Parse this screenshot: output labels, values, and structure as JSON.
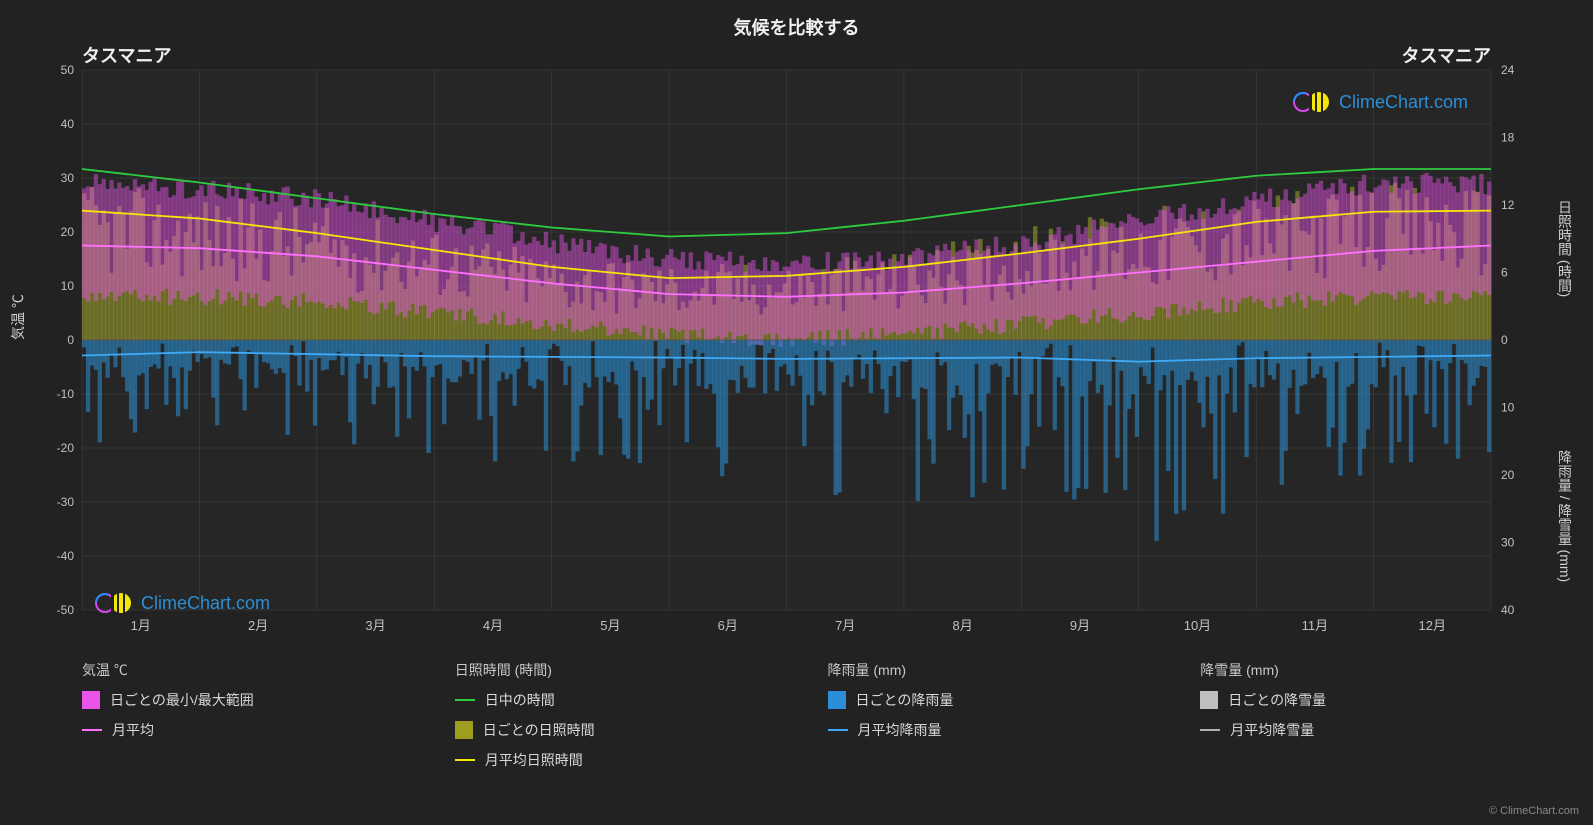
{
  "title": "気候を比較する",
  "location_left": "タスマニア",
  "location_right": "タスマニア",
  "watermark": "ClimeChart.com",
  "copyright": "© ClimeChart.com",
  "axes": {
    "left_label": "気温 ℃",
    "right_top_label": "日照時間 (時間)",
    "right_bottom_label": "降雨量 / 降雪量 (mm)",
    "left_ticks": [
      -50,
      -40,
      -30,
      -20,
      -10,
      0,
      10,
      20,
      30,
      40,
      50
    ],
    "right_top_ticks": [
      0,
      6,
      12,
      18,
      24
    ],
    "right_bottom_ticks": [
      0,
      10,
      20,
      30,
      40
    ],
    "months": [
      "1月",
      "2月",
      "3月",
      "4月",
      "5月",
      "6月",
      "7月",
      "8月",
      "9月",
      "10月",
      "11月",
      "12月"
    ]
  },
  "chart": {
    "background": "#222222",
    "grid_color": "#444444",
    "plot_bg": "#262626",
    "left_ylim": [
      -50,
      50
    ],
    "right_top_ylim": [
      0,
      24
    ],
    "right_bottom_ylim": [
      0,
      40
    ],
    "temp_range_color": "#e855e8",
    "temp_range_opacity": 0.45,
    "sunshine_range_color": "#c2c22e",
    "sunshine_range_opacity": 0.45,
    "rain_bar_color": "#2a8fd6",
    "rain_bar_opacity": 0.55,
    "daylength_line_color": "#2ecc40",
    "avg_sun_line_color": "#f5e60a",
    "avg_temp_line_color": "#ff70ff",
    "avg_rain_line_color": "#3fa9f5",
    "avg_snow_line_color": "#b0b0b0",
    "line_width": 1.8,
    "daylength_hours": [
      15.2,
      14.0,
      12.6,
      11.2,
      10.0,
      9.2,
      9.5,
      10.6,
      12.0,
      13.4,
      14.6,
      15.2
    ],
    "avg_sunshine_hours": [
      11.5,
      10.8,
      9.5,
      8.0,
      6.5,
      5.5,
      5.7,
      6.5,
      7.7,
      9.0,
      10.5,
      11.4
    ],
    "avg_temp_c": [
      17.5,
      17.0,
      15.5,
      13.0,
      10.5,
      8.5,
      8.0,
      8.8,
      10.5,
      12.5,
      14.5,
      16.5
    ],
    "avg_rain_mm": [
      2.3,
      1.8,
      2.1,
      2.4,
      2.5,
      2.6,
      2.8,
      2.7,
      2.6,
      3.2,
      2.7,
      2.5
    ],
    "avg_snow_mm": [
      0,
      0,
      0,
      0,
      0,
      0,
      0,
      0,
      0,
      0,
      0,
      0
    ],
    "daily_temp_min": [
      8,
      8,
      7,
      5,
      3,
      1,
      0,
      1,
      3,
      5,
      7,
      8
    ],
    "daily_temp_max": [
      29,
      28,
      26,
      22,
      18,
      15,
      14,
      15,
      18,
      22,
      26,
      29
    ],
    "daily_sun_min": [
      2,
      2,
      1,
      1,
      0,
      0,
      0,
      0,
      1,
      1,
      2,
      2
    ],
    "daily_sun_max": [
      14,
      13,
      12,
      10,
      8,
      7,
      7,
      8,
      10,
      12,
      13,
      14
    ],
    "daily_rain_max": [
      12,
      9,
      11,
      13,
      14,
      15,
      16,
      18,
      16,
      22,
      17,
      14
    ]
  },
  "legend": {
    "groups": [
      {
        "title": "気温 ℃",
        "items": [
          {
            "type": "box",
            "color": "#e855e8",
            "label": "日ごとの最小/最大範囲"
          },
          {
            "type": "line",
            "color": "#ff70ff",
            "label": "月平均"
          }
        ]
      },
      {
        "title": "日照時間 (時間)",
        "items": [
          {
            "type": "line",
            "color": "#2ecc40",
            "label": "日中の時間"
          },
          {
            "type": "box",
            "color": "#9e9e1e",
            "label": "日ごとの日照時間"
          },
          {
            "type": "line",
            "color": "#f5e60a",
            "label": "月平均日照時間"
          }
        ]
      },
      {
        "title": "降雨量 (mm)",
        "items": [
          {
            "type": "box",
            "color": "#2a8fd6",
            "label": "日ごとの降雨量"
          },
          {
            "type": "line",
            "color": "#3fa9f5",
            "label": "月平均降雨量"
          }
        ]
      },
      {
        "title": "降雪量 (mm)",
        "items": [
          {
            "type": "box",
            "color": "#c0c0c0",
            "label": "日ごとの降雪量"
          },
          {
            "type": "line",
            "color": "#b0b0b0",
            "label": "月平均降雪量"
          }
        ]
      }
    ]
  }
}
